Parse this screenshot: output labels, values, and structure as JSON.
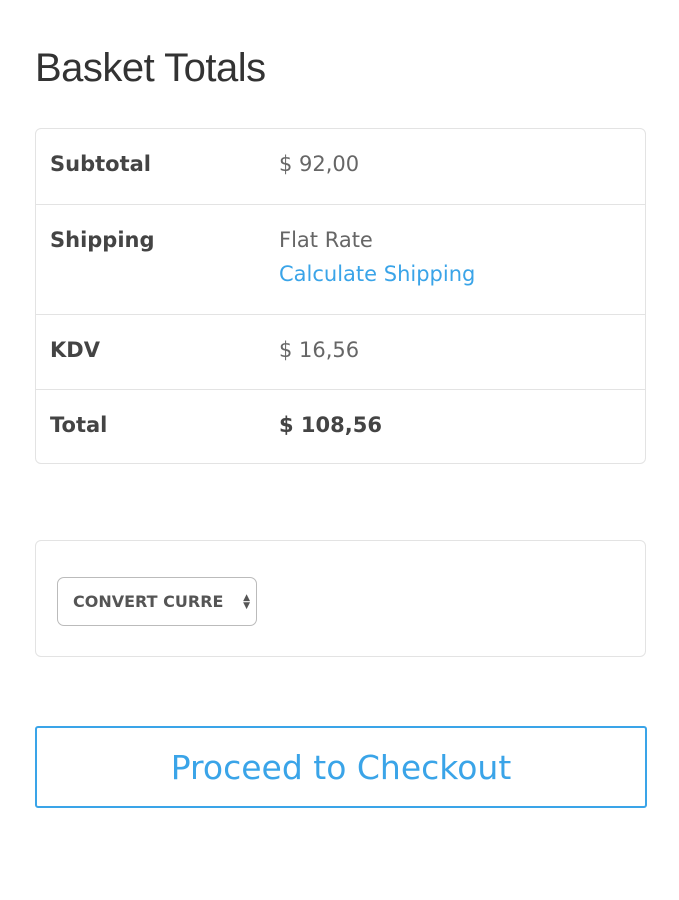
{
  "title": "Basket Totals",
  "totals": {
    "subtotal": {
      "label": "Subtotal",
      "value": "$ 92,00"
    },
    "shipping": {
      "label": "Shipping",
      "value": "Flat Rate",
      "link": "Calculate Shipping"
    },
    "tax": {
      "label": "KDV",
      "value": "$ 16,56"
    },
    "total": {
      "label": "Total",
      "value": "$ 108,56"
    }
  },
  "currency_select": {
    "selected": "CONVERT CURRE"
  },
  "checkout_button": "Proceed to Checkout",
  "colors": {
    "accent": "#3aa4e8",
    "text": "#555555",
    "border": "#e3e3e3"
  }
}
